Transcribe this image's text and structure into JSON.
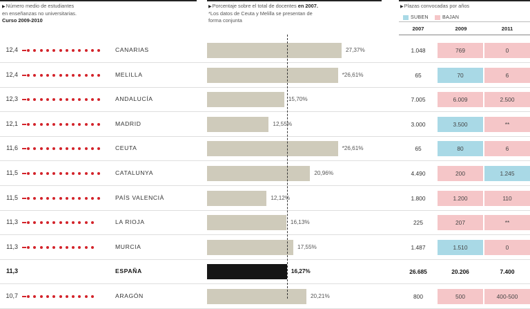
{
  "colors": {
    "dot": "#d3232a",
    "bar": "#cfcbbb",
    "bar_total": "#161616",
    "up": "#a9d9e6",
    "down": "#f5c6c8"
  },
  "left_header": {
    "line1": "Número medio de estudiantes",
    "line2": "en enseñanzas no universitarias.",
    "line3": "Curso 2009-2010"
  },
  "mid_header": {
    "line1_a": "Porcentaje sobre el total de docentes ",
    "line1_b": "en 2007.",
    "line2": "*Los datos de Ceuta y Melilla se presentan de",
    "line3": "forma conjunta"
  },
  "right_header": {
    "title": "Plazas convocadas por años",
    "legend_up": "SUBEN",
    "legend_down": "BAJAN",
    "years": [
      "2007",
      "2009",
      "2011"
    ]
  },
  "chart_data": {
    "type": "table",
    "pct_axis_max": 30,
    "average_pct": 16.27,
    "rows": [
      {
        "students": 12.4,
        "students_label": "12,4",
        "region": "CANARIAS",
        "pct": 27.37,
        "pct_label": "27,37%",
        "y2007": "1.048",
        "y2009": "769",
        "y2009_trend": "down",
        "y2011": "0",
        "y2011_trend": "down",
        "total": false
      },
      {
        "students": 12.4,
        "students_label": "12,4",
        "region": "MELILLA",
        "pct": 26.61,
        "pct_label": "*26,61%",
        "y2007": "65",
        "y2009": "70",
        "y2009_trend": "up",
        "y2011": "6",
        "y2011_trend": "down",
        "total": false
      },
      {
        "students": 12.3,
        "students_label": "12,3",
        "region": "ANDALUCÍA",
        "pct": 15.7,
        "pct_label": "15,70%",
        "y2007": "7.005",
        "y2009": "6.009",
        "y2009_trend": "down",
        "y2011": "2.500",
        "y2011_trend": "down",
        "total": false
      },
      {
        "students": 12.1,
        "students_label": "12,1",
        "region": "MADRID",
        "pct": 12.55,
        "pct_label": "12,55%",
        "y2007": "3.000",
        "y2009": "3.500",
        "y2009_trend": "up",
        "y2011": "**",
        "y2011_trend": "down",
        "total": false
      },
      {
        "students": 11.6,
        "students_label": "11,6",
        "region": "CEUTA",
        "pct": 26.61,
        "pct_label": "*26,61%",
        "y2007": "65",
        "y2009": "80",
        "y2009_trend": "up",
        "y2011": "6",
        "y2011_trend": "down",
        "total": false
      },
      {
        "students": 11.5,
        "students_label": "11,5",
        "region": "CATALUNYA",
        "pct": 20.96,
        "pct_label": "20,96%",
        "y2007": "4.490",
        "y2009": "200",
        "y2009_trend": "down",
        "y2011": "1.245",
        "y2011_trend": "up",
        "total": false
      },
      {
        "students": 11.5,
        "students_label": "11,5",
        "region": "PAÍS VALENCIÀ",
        "pct": 12.12,
        "pct_label": "12,12%",
        "y2007": "1.800",
        "y2009": "1.200",
        "y2009_trend": "down",
        "y2011": "110",
        "y2011_trend": "down",
        "total": false
      },
      {
        "students": 11.3,
        "students_label": "11,3",
        "region": "LA RIOJA",
        "pct": 16.13,
        "pct_label": "16,13%",
        "y2007": "225",
        "y2009": "207",
        "y2009_trend": "down",
        "y2011": "**",
        "y2011_trend": "down",
        "total": false
      },
      {
        "students": 11.3,
        "students_label": "11,3",
        "region": "MURCIA",
        "pct": 17.55,
        "pct_label": "17,55%",
        "y2007": "1.487",
        "y2009": "1.510",
        "y2009_trend": "up",
        "y2011": "0",
        "y2011_trend": "down",
        "total": false
      },
      {
        "students": 11.3,
        "students_label": "11,3",
        "region": "ESPAÑA",
        "pct": 16.27,
        "pct_label": "16,27%",
        "y2007": "26.685",
        "y2009": "20.206",
        "y2009_trend": "down",
        "y2011": "7.400",
        "y2011_trend": "down",
        "total": true
      },
      {
        "students": 10.7,
        "students_label": "10,7",
        "region": "ARAGÓN",
        "pct": 20.21,
        "pct_label": "20,21%",
        "y2007": "800",
        "y2009": "500",
        "y2009_trend": "down",
        "y2011": "400-500",
        "y2011_trend": "down",
        "total": false
      }
    ]
  }
}
